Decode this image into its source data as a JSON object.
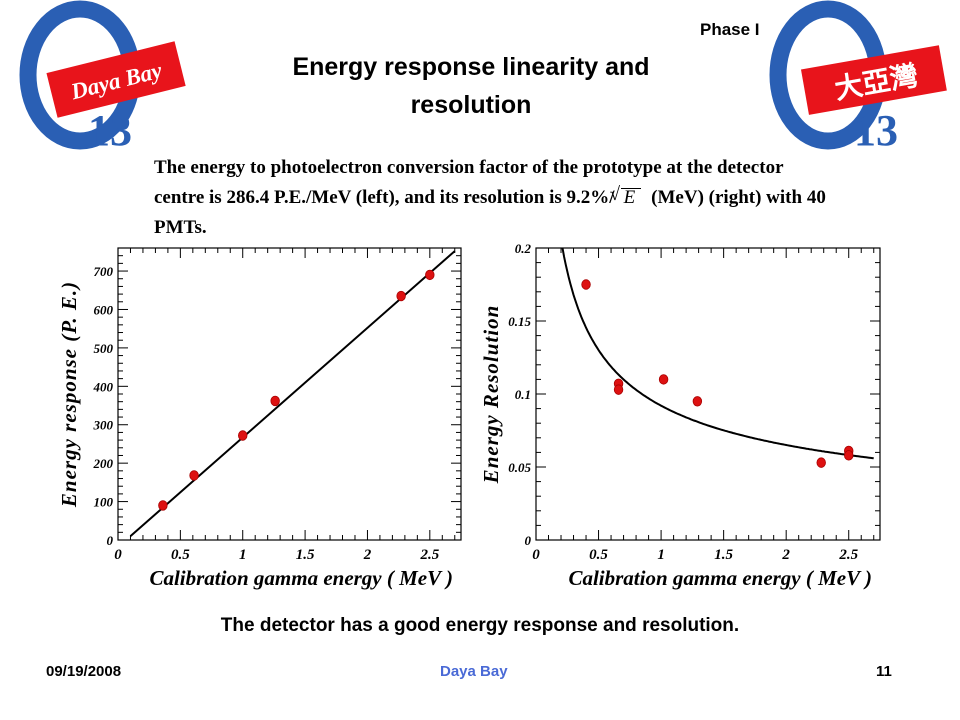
{
  "header": {
    "phase_label": "Phase I",
    "title_line1": "Energy response linearity and",
    "title_line2": "resolution",
    "logo_left": {
      "text": "Daya Bay",
      "sub": "13",
      "symbol": "θ"
    },
    "logo_right": {
      "text": "大亞灣",
      "sub": "13",
      "symbol": "θ"
    }
  },
  "description": {
    "part1": "The energy to photoelectron conversion factor of the prototype at the detector centre is 286.4 P.E./MeV (left), and its resolution is 9.2%/",
    "sqrt_symbol": "E",
    "part2": "(MeV) (right) with 40 PMTs."
  },
  "conclusion": "The detector has a good energy response and resolution.",
  "footer": {
    "date": "09/19/2008",
    "center": "Daya Bay",
    "page": "11"
  },
  "colors": {
    "marker": "#dd1111",
    "logo_red": "#e8141b",
    "logo_blue": "#2a5fb4",
    "footer_blue": "#4a6ad6"
  },
  "chart_data": [
    {
      "type": "scatter",
      "xlabel": "Calibration gamma energy ( MeV )",
      "ylabel": "Energy response (P. E.)",
      "xlim": [
        0,
        2.75
      ],
      "ylim": [
        0,
        760
      ],
      "x_ticks": [
        "0",
        "0.5",
        "1",
        "1.5",
        "2",
        "2.5"
      ],
      "y_ticks": [
        "0",
        "100",
        "200",
        "300",
        "400",
        "500",
        "600",
        "700"
      ],
      "points": [
        {
          "x": 0.36,
          "y": 90
        },
        {
          "x": 0.61,
          "y": 168
        },
        {
          "x": 1.0,
          "y": 272
        },
        {
          "x": 1.26,
          "y": 362
        },
        {
          "x": 2.27,
          "y": 635
        },
        {
          "x": 2.5,
          "y": 690
        }
      ],
      "fit": {
        "type": "linear",
        "x": [
          0.1,
          2.7
        ],
        "y": [
          10,
          752
        ]
      }
    },
    {
      "type": "scatter",
      "xlabel": "Calibration gamma energy ( MeV )",
      "ylabel": "Energy Resolution",
      "xlim": [
        0,
        2.75
      ],
      "ylim": [
        0,
        0.2
      ],
      "x_ticks": [
        "0",
        "0.5",
        "1",
        "1.5",
        "2",
        "2.5"
      ],
      "y_ticks": [
        "0",
        "0.05",
        "0.1",
        "0.15",
        "0.2"
      ],
      "points": [
        {
          "x": 0.4,
          "y": 0.175
        },
        {
          "x": 0.66,
          "y": 0.107
        },
        {
          "x": 0.66,
          "y": 0.103
        },
        {
          "x": 1.02,
          "y": 0.11
        },
        {
          "x": 1.29,
          "y": 0.095
        },
        {
          "x": 2.28,
          "y": 0.053
        },
        {
          "x": 2.5,
          "y": 0.061
        },
        {
          "x": 2.5,
          "y": 0.058
        }
      ],
      "fit": {
        "type": "a/sqrt(E)",
        "a": 0.092,
        "x_range": [
          0.2,
          2.7
        ]
      }
    }
  ]
}
